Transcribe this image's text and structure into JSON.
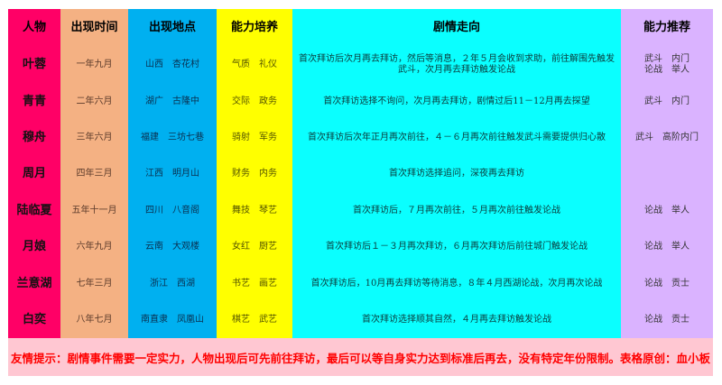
{
  "headers": [
    "人物",
    "出现时间",
    "出现地点",
    "能力培养",
    "剧情走向",
    "能力推荐"
  ],
  "rows": [
    {
      "name": "叶蓉",
      "time": "一年九月",
      "place": "山西　杏花村",
      "skills": "气质　礼仪",
      "plot": "首次拜访后次月再去拜访，然后等消息，２年５月会收到求助，前往解围先触发武斗，次月再去拜访触发论战",
      "recommend": "武斗　内门\n论战　举人"
    },
    {
      "name": "青青",
      "time": "二年六月",
      "place": "湖广　古隆中",
      "skills": "交际　政务",
      "plot": "首次拜访选择不询问，次月再去拜访，剧情过后11－12月再去探望",
      "recommend": "武斗　内门"
    },
    {
      "name": "穆舟",
      "time": "三年六月",
      "place": "福建　三坊七巷",
      "skills": "骑射　军务",
      "plot": "首次拜访后次年正月再次前往，４－６月再次前往触发武斗需要提供归心散",
      "recommend": "武斗　高阶内门"
    },
    {
      "name": "周月",
      "time": "四年三月",
      "place": "江西　明月山",
      "skills": "财务　内务",
      "plot": "首次拜访选择追问，深夜再去拜访",
      "recommend": ""
    },
    {
      "name": "陆临夏",
      "time": "五年十一月",
      "place": "四川　八音阁",
      "skills": "舞技　琴艺",
      "plot": "首次拜访后，７月再次前往，５月再次前往触发论战",
      "recommend": "论战　举人"
    },
    {
      "name": "月娘",
      "time": "六年九月",
      "place": "云南　大观楼",
      "skills": "女红　厨艺",
      "plot": "首次拜访后１－３月再次拜访，６月再次拜访后前往城门触发论战",
      "recommend": "论战　举人"
    },
    {
      "name": "兰意湖",
      "time": "七年三月",
      "place": "浙江　西湖",
      "skills": "书艺　画艺",
      "plot": "首次拜访后，10月再去拜访等待消息，８年４月西湖论战，次月再次论战",
      "recommend": "论战　贡士"
    },
    {
      "name": "白奕",
      "time": "八年七月",
      "place": "南直隶　凤凰山",
      "skills": "棋艺　武艺",
      "plot": "首次拜访选择顺其自然，４月再去拜访触发论战",
      "recommend": "论战　贡士"
    }
  ],
  "footer": "友情提示：剧情事件需要一定实力，人物出现后可先前往拜访，最后可以等自身实力达到标准后再去，没有特定年份限制。表格原创：血小板",
  "colors": {
    "name": "#ff0066",
    "time": "#f4b183",
    "place": "#00b0f0",
    "skills": "#ffff00",
    "plot": "#0affff",
    "recommend": "#dab3ff",
    "footer_bg": "#ffc7d2",
    "footer_text": "#ff0000"
  }
}
